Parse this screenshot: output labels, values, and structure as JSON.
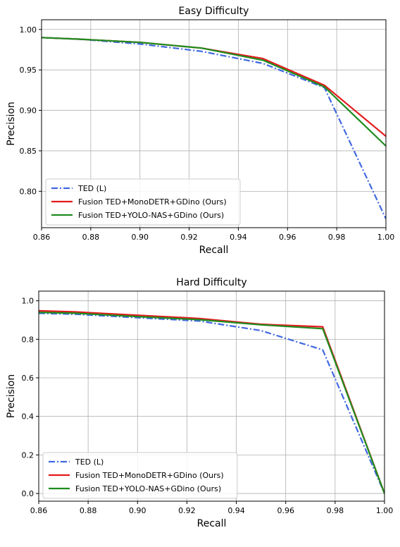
{
  "chart_data": [
    {
      "type": "line",
      "title": "Easy Difficulty",
      "xlabel": "Recall",
      "ylabel": "Precision",
      "xlim": [
        0.86,
        1.0
      ],
      "ylim": [
        0.755,
        1.012
      ],
      "xticks": [
        0.86,
        0.88,
        0.9,
        0.92,
        0.94,
        0.96,
        0.98,
        1.0
      ],
      "xtick_labels": [
        "0.86",
        "0.88",
        "0.90",
        "0.92",
        "0.94",
        "0.96",
        "0.98",
        "1.00"
      ],
      "yticks": [
        0.8,
        0.85,
        0.9,
        0.95,
        1.0
      ],
      "ytick_labels": [
        "0.80",
        "0.85",
        "0.90",
        "0.95",
        "1.00"
      ],
      "grid": true,
      "legend_position": "lower-left",
      "series": [
        {
          "name": "TED (L)",
          "color": "#4169e1",
          "style": "dashdot",
          "x": [
            0.86,
            0.875,
            0.9,
            0.925,
            0.95,
            0.975,
            1.0
          ],
          "y": [
            0.99,
            0.988,
            0.982,
            0.973,
            0.958,
            0.928,
            0.766
          ]
        },
        {
          "name": "Fusion TED+MonoDETR+GDino (Ours)",
          "color": "#e41a1c",
          "style": "solid",
          "x": [
            0.86,
            0.875,
            0.9,
            0.925,
            0.95,
            0.975,
            1.0
          ],
          "y": [
            0.99,
            0.988,
            0.984,
            0.977,
            0.964,
            0.931,
            0.868
          ]
        },
        {
          "name": "Fusion TED+YOLO-NAS+GDino (Ours)",
          "color": "#1f8c1f",
          "style": "solid",
          "x": [
            0.86,
            0.875,
            0.9,
            0.925,
            0.95,
            0.975,
            1.0
          ],
          "y": [
            0.99,
            0.988,
            0.984,
            0.977,
            0.962,
            0.929,
            0.856
          ]
        }
      ]
    },
    {
      "type": "line",
      "title": "Hard Difficulty",
      "xlabel": "Recall",
      "ylabel": "Precision",
      "xlim": [
        0.86,
        1.0
      ],
      "ylim": [
        -0.04,
        1.05
      ],
      "xticks": [
        0.86,
        0.88,
        0.9,
        0.92,
        0.94,
        0.96,
        0.98,
        1.0
      ],
      "xtick_labels": [
        "0.86",
        "0.88",
        "0.90",
        "0.92",
        "0.94",
        "0.96",
        "0.98",
        "1.00"
      ],
      "yticks": [
        0.0,
        0.2,
        0.4,
        0.6,
        0.8,
        1.0
      ],
      "ytick_labels": [
        "0.0",
        "0.2",
        "0.4",
        "0.6",
        "0.8",
        "1.0"
      ],
      "grid": true,
      "legend_position": "lower-left",
      "series": [
        {
          "name": "TED (L)",
          "color": "#4169e1",
          "style": "dashdot",
          "x": [
            0.86,
            0.875,
            0.9,
            0.925,
            0.95,
            0.975,
            1.0
          ],
          "y": [
            0.935,
            0.93,
            0.912,
            0.895,
            0.845,
            0.745,
            0.0
          ]
        },
        {
          "name": "Fusion TED+MonoDETR+GDino (Ours)",
          "color": "#e41a1c",
          "style": "solid",
          "x": [
            0.86,
            0.875,
            0.9,
            0.925,
            0.95,
            0.975,
            1.0
          ],
          "y": [
            0.948,
            0.942,
            0.925,
            0.908,
            0.878,
            0.865,
            0.0
          ]
        },
        {
          "name": "Fusion TED+YOLO-NAS+GDino (Ours)",
          "color": "#1f8c1f",
          "style": "solid",
          "x": [
            0.86,
            0.875,
            0.9,
            0.925,
            0.95,
            0.975,
            1.0
          ],
          "y": [
            0.94,
            0.935,
            0.918,
            0.902,
            0.875,
            0.855,
            0.0
          ]
        }
      ]
    }
  ]
}
